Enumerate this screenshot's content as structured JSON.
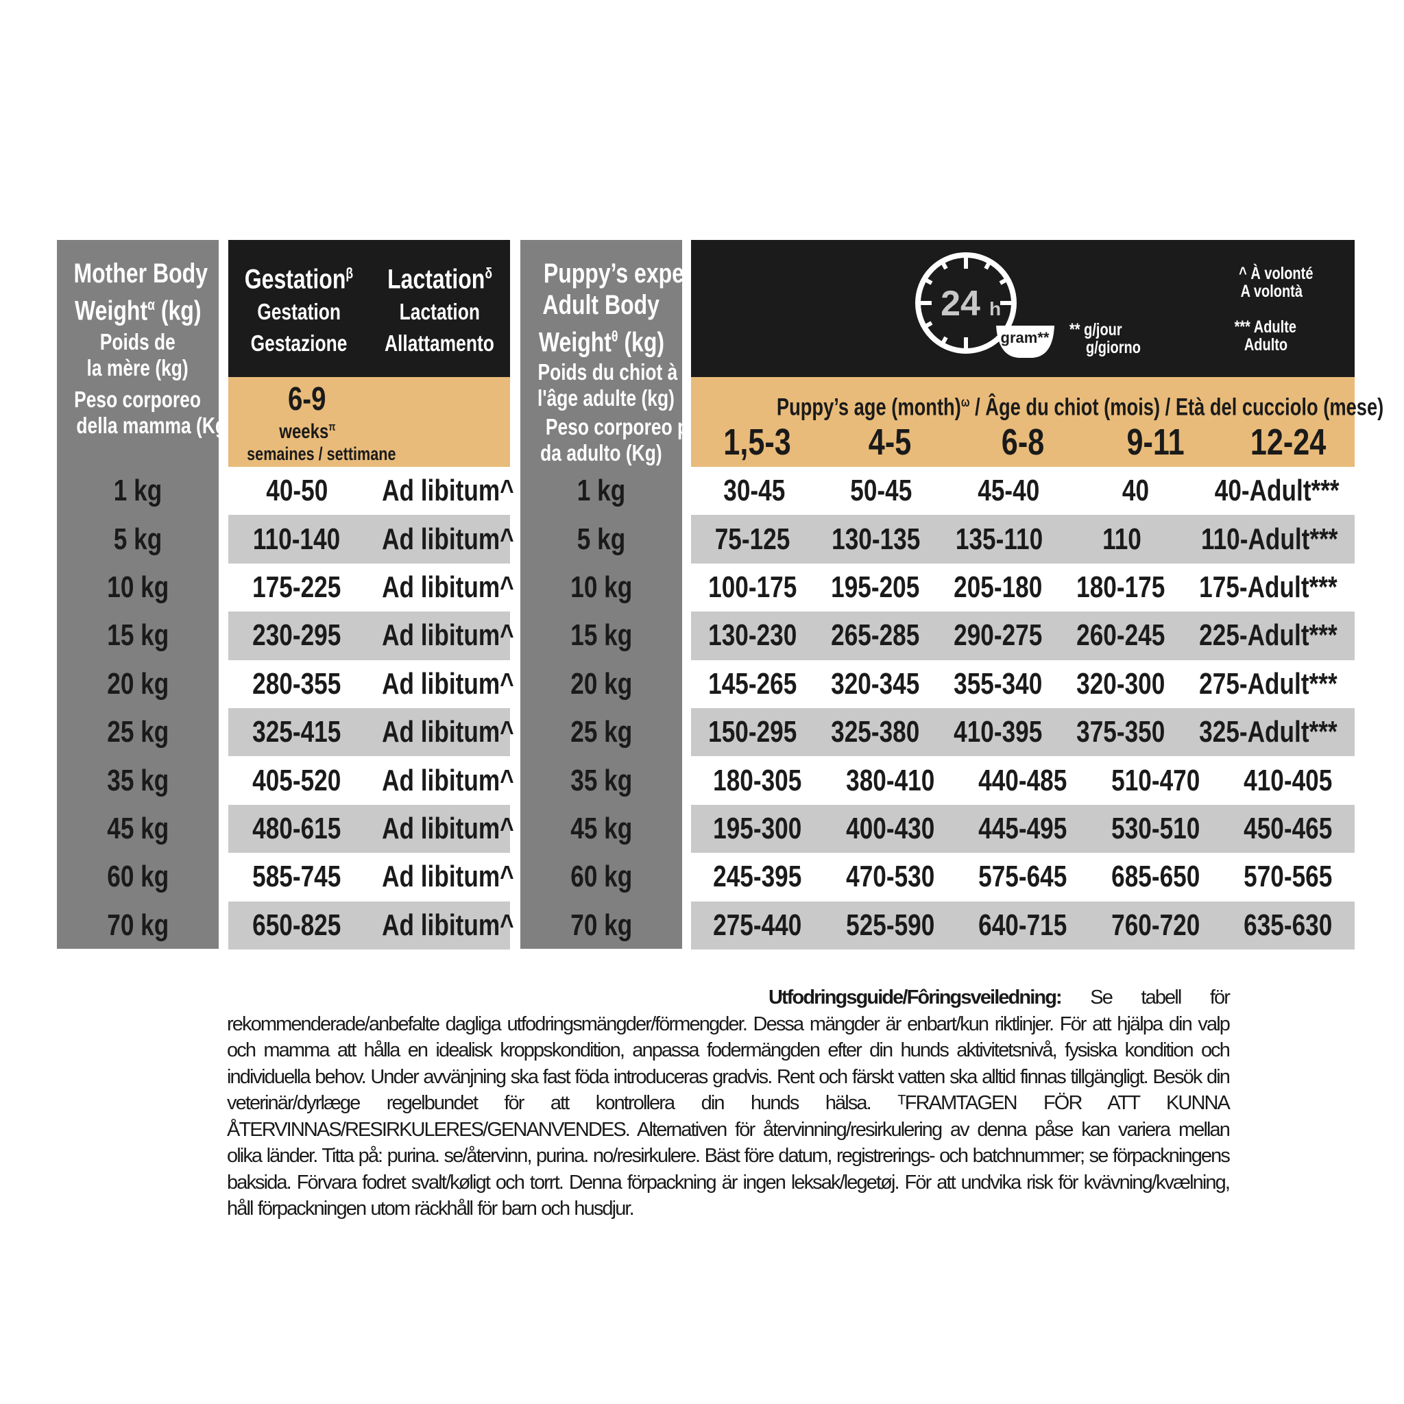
{
  "mother_col": {
    "title1": "Mother Body",
    "title2": "Weight",
    "title2_sup": "α",
    "title2_unit": " (kg)",
    "fr": [
      "Poids de",
      "la mère (kg)"
    ],
    "it": [
      "Peso corporeo",
      "della mamma (Kg)"
    ]
  },
  "gestation": {
    "en": "Gestation",
    "sup": "β",
    "fr": "Gestation",
    "it": "Gestazione",
    "weeks_range": "6-9",
    "weeks": "weeks",
    "weeks_sup": "π",
    "weeks_fr_it": "semaines / settimane"
  },
  "lactation": {
    "en": "Lactation",
    "sup": "δ",
    "fr": "Lactation",
    "it": "Allattamento"
  },
  "puppy_col": {
    "title1": "Puppy’s expected",
    "title2": "Adult Body",
    "title3": "Weight",
    "title3_sup": "θ",
    "title3_unit": " (kg)",
    "fr": [
      "Poids du chiot à",
      "l'âge adulte (kg)"
    ],
    "it": [
      "Peso corporeo previsto",
      "da adulto (Kg)"
    ]
  },
  "legend": {
    "clock_label": "24",
    "clock_unit": "h",
    "bowl_label": "gram**",
    "gram_note": [
      "** g/jour",
      "g/giorno"
    ],
    "ad_lib_note": [
      "^ À volonté",
      "A volontà"
    ],
    "adult_note": [
      "*** Adulte",
      "Adulto"
    ]
  },
  "age_header": {
    "label": "Puppy’s age (month)",
    "sup": "ω",
    "fr": " / Âge du chiot (mois) / Età del cucciolo (mese)",
    "ages": [
      "1,5-3",
      "4-5",
      "6-8",
      "9-11",
      "12-24"
    ]
  },
  "colors": {
    "gray": "#808080",
    "black": "#1c1b1b",
    "tan": "#e8bb7a",
    "alt_row": "#c9c9ca"
  },
  "icons": [
    "clock-24h-icon",
    "bowl-icon"
  ],
  "rows": [
    {
      "mother": "1 kg",
      "gest": "40-50",
      "lact": "Ad libitum^",
      "puppy": "1 kg",
      "vals": [
        "30-45",
        "50-45",
        "45-40",
        "40",
        "40-Adult***"
      ]
    },
    {
      "mother": "5 kg",
      "gest": "110-140",
      "lact": "Ad libitum^",
      "puppy": "5 kg",
      "vals": [
        "75-125",
        "130-135",
        "135-110",
        "110",
        "110-Adult***"
      ]
    },
    {
      "mother": "10 kg",
      "gest": "175-225",
      "lact": "Ad libitum^",
      "puppy": "10 kg",
      "vals": [
        "100-175",
        "195-205",
        "205-180",
        "180-175",
        "175-Adult***"
      ]
    },
    {
      "mother": "15 kg",
      "gest": "230-295",
      "lact": "Ad libitum^",
      "puppy": "15 kg",
      "vals": [
        "130-230",
        "265-285",
        "290-275",
        "260-245",
        "225-Adult***"
      ]
    },
    {
      "mother": "20 kg",
      "gest": "280-355",
      "lact": "Ad libitum^",
      "puppy": "20 kg",
      "vals": [
        "145-265",
        "320-345",
        "355-340",
        "320-300",
        "275-Adult***"
      ]
    },
    {
      "mother": "25 kg",
      "gest": "325-415",
      "lact": "Ad libitum^",
      "puppy": "25 kg",
      "vals": [
        "150-295",
        "325-380",
        "410-395",
        "375-350",
        "325-Adult***"
      ]
    },
    {
      "mother": "35 kg",
      "gest": "405-520",
      "lact": "Ad libitum^",
      "puppy": "35 kg",
      "vals": [
        "180-305",
        "380-410",
        "440-485",
        "510-470",
        "410-405"
      ]
    },
    {
      "mother": "45 kg",
      "gest": "480-615",
      "lact": "Ad libitum^",
      "puppy": "45 kg",
      "vals": [
        "195-300",
        "400-430",
        "445-495",
        "530-510",
        "450-465"
      ]
    },
    {
      "mother": "60 kg",
      "gest": "585-745",
      "lact": "Ad libitum^",
      "puppy": "60 kg",
      "vals": [
        "245-395",
        "470-530",
        "575-645",
        "685-650",
        "570-565"
      ]
    },
    {
      "mother": "70 kg",
      "gest": "650-825",
      "lact": "Ad libitum^",
      "puppy": "70 kg",
      "vals": [
        "275-440",
        "525-590",
        "640-715",
        "760-720",
        "635-630"
      ]
    }
  ],
  "footer": {
    "heading": "Utfodringsguide/Fôringsveiledning:",
    "body": " Se tabell för rekommenderade/anbefalte dagliga utfodringsmängder/förmengder. Dessa mängder är enbart/kun riktlinjer. För att hjälpa din valp och mamma att hålla en idealisk kroppskondition, anpassa fodermängden efter din hunds aktivitetsnivå, fysiska kondition och individuella behov. Under avvänjning ska fast föda introduceras gradvis. Rent och färskt vatten ska alltid finnas tillgängligt. Besök din veterinär/dyrlæge regelbundet för att kontrollera din hunds hälsa. ᵀFRAMTAGEN FÖR ATT KUNNA ÅTERVINNAS/RESIRKULERES/GENANVENDES. Alternativen för återvinning/resirkulering av denna påse kan variera mellan olika länder. Titta på: purina. se/återvinn, purina. no/resirkulere. Bäst före datum, registrerings- och batchnummer; se förpackningens baksida. Förvara fodret svalt/køligt och torrt. Denna förpackning är ingen leksak/legetøj. För att undvika risk för kvävning/kvælning, håll förpackningen utom räckhåll för barn och husdjur."
  }
}
